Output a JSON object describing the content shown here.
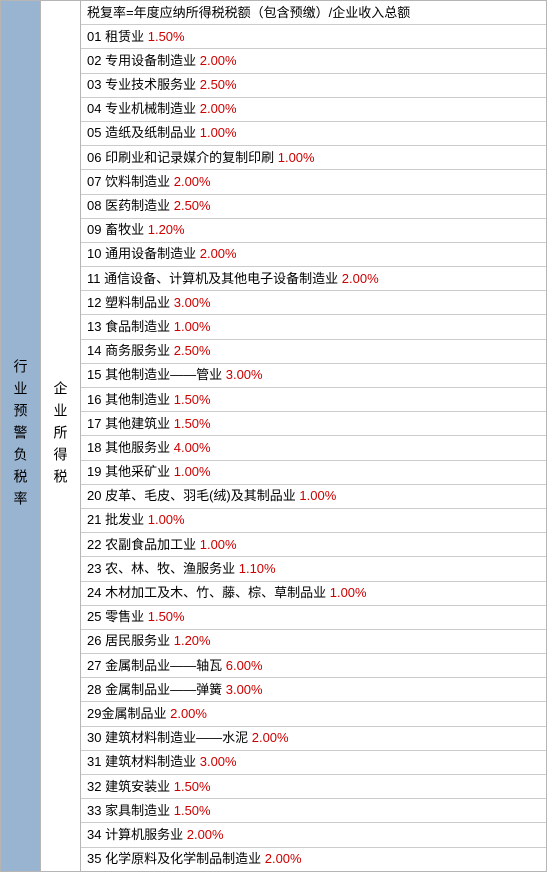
{
  "leftHeader": "行业预警负税率",
  "midHeader": "企业所得税",
  "formula": "税复率=年度应纳所得税税额（包含预缴）/企业收入总额",
  "colors": {
    "leftBg": "#99b4d1",
    "rateColor": "#cc0000",
    "borderColor": "#b5b5b5",
    "rowBorder": "#cccccc",
    "textColor": "#000000"
  },
  "rows": [
    {
      "num": "01",
      "label": "租赁业",
      "rate": "1.50%"
    },
    {
      "num": "02",
      "label": "专用设备制造业",
      "rate": "2.00%"
    },
    {
      "num": "03",
      "label": "专业技术服务业",
      "rate": "2.50%"
    },
    {
      "num": "04",
      "label": "专业机械制造业",
      "rate": "2.00%"
    },
    {
      "num": "05",
      "label": "造纸及纸制品业",
      "rate": "1.00%"
    },
    {
      "num": "06",
      "label": "印刷业和记录媒介的复制印刷",
      "rate": "1.00%"
    },
    {
      "num": "07",
      "label": "饮料制造业",
      "rate": "2.00%"
    },
    {
      "num": "08",
      "label": "医药制造业",
      "rate": "2.50%"
    },
    {
      "num": "09",
      "label": "畜牧业",
      "rate": "1.20%"
    },
    {
      "num": "10",
      "label": "通用设备制造业",
      "rate": "2.00%"
    },
    {
      "num": "11",
      "label": "通信设备、计算机及其他电子设备制造业",
      "rate": "2.00%"
    },
    {
      "num": "12",
      "label": "塑料制品业",
      "rate": "3.00%"
    },
    {
      "num": "13",
      "label": "食品制造业",
      "rate": "1.00%"
    },
    {
      "num": "14",
      "label": "商务服务业",
      "rate": "2.50%"
    },
    {
      "num": "15",
      "label": "其他制造业——管业",
      "rate": "3.00%"
    },
    {
      "num": "16",
      "label": "其他制造业",
      "rate": "1.50%"
    },
    {
      "num": "17",
      "label": "其他建筑业",
      "rate": "1.50%"
    },
    {
      "num": "18",
      "label": "其他服务业",
      "rate": "4.00%"
    },
    {
      "num": "19",
      "label": "其他采矿业",
      "rate": "1.00%"
    },
    {
      "num": "20",
      "label": "皮革、毛皮、羽毛(绒)及其制品业",
      "rate": "1.00%"
    },
    {
      "num": "21",
      "label": "批发业",
      "rate": "1.00%"
    },
    {
      "num": "22",
      "label": "农副食品加工业",
      "rate": "1.00%"
    },
    {
      "num": "23",
      "label": "农、林、牧、渔服务业",
      "rate": "1.10%"
    },
    {
      "num": "24",
      "label": "木材加工及木、竹、藤、棕、草制品业",
      "rate": "1.00%"
    },
    {
      "num": "25",
      "label": "零售业",
      "rate": "1.50%"
    },
    {
      "num": "26",
      "label": "居民服务业",
      "rate": "1.20%"
    },
    {
      "num": "27",
      "label": "金属制品业——轴瓦",
      "rate": "6.00%"
    },
    {
      "num": "28",
      "label": "金属制品业——弹簧",
      "rate": "3.00%"
    },
    {
      "num": "29",
      "label": "金属制品业",
      "rate": "2.00%",
      "nospace": true
    },
    {
      "num": "30",
      "label": "建筑材料制造业——水泥",
      "rate": "2.00%"
    },
    {
      "num": "31",
      "label": "建筑材料制造业",
      "rate": "3.00%"
    },
    {
      "num": "32",
      "label": "建筑安装业",
      "rate": "1.50%"
    },
    {
      "num": "33",
      "label": "家具制造业",
      "rate": "1.50%"
    },
    {
      "num": "34",
      "label": "计算机服务业",
      "rate": "2.00%"
    },
    {
      "num": "35",
      "label": "化学原料及化学制品制造业",
      "rate": "2.00%"
    }
  ]
}
